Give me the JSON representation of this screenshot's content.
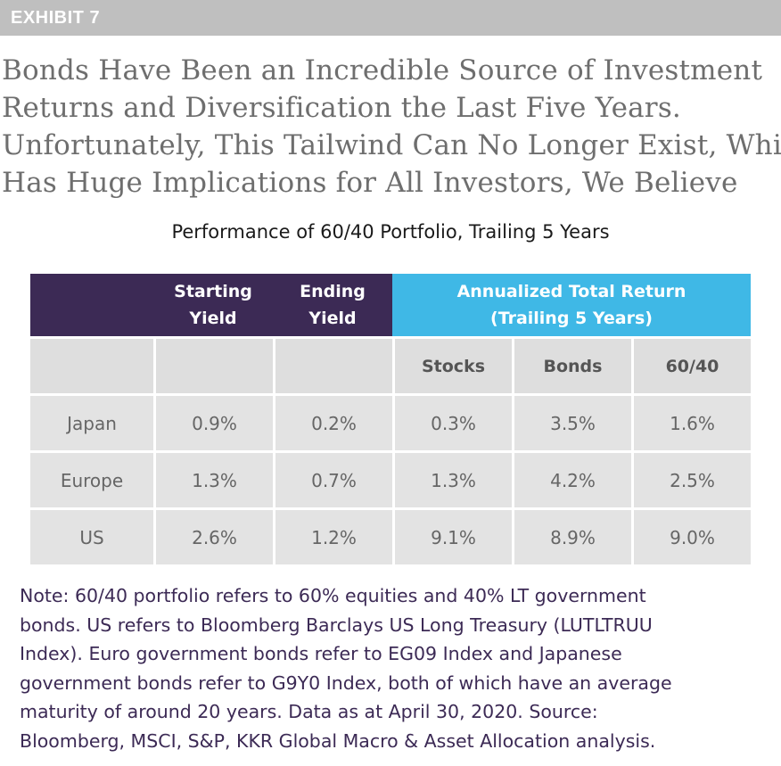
{
  "exhibit_label": "EXHIBIT 7",
  "headline_lines": [
    "Bonds Have Been an Incredible Source of Investment",
    "Returns and Diversification the Last Five Years.",
    "Unfortunately, This Tailwind Can No Longer Exist, Which",
    "Has Huge Implications for All Investors, We Believe"
  ],
  "subtitle": "Performance of 60/40 Portfolio, Trailing 5 Years",
  "table": {
    "header": {
      "starting_yield": [
        "Starting",
        "Yield"
      ],
      "ending_yield": [
        "Ending",
        "Yield"
      ],
      "annualized": [
        "Annualized Total Return",
        "(Trailing 5 Years)"
      ]
    },
    "subheader": [
      "",
      "",
      "",
      "Stocks",
      "Bonds",
      "60/40"
    ],
    "rows": [
      [
        "Japan",
        "0.9%",
        "0.2%",
        "0.3%",
        "3.5%",
        "1.6%"
      ],
      [
        "Europe",
        "1.3%",
        "0.7%",
        "1.3%",
        "4.2%",
        "2.5%"
      ],
      [
        "US",
        "2.6%",
        "1.2%",
        "9.1%",
        "8.9%",
        "9.0%"
      ]
    ]
  },
  "note_lines": [
    "Note: 60/40 portfolio refers to 60% equities and 40% LT government",
    "bonds. US refers to Bloomberg Barclays US Long Treasury (LUTLTRUU",
    "Index). Euro government bonds refer to EG09 Index and Japanese",
    "government bonds refer to G9Y0 Index, both of which have an average",
    "maturity of around 20 years. Data as at April 30, 2020. Source:",
    "Bloomberg, MSCI, S&P, KKR Global Macro & Asset Allocation analysis."
  ],
  "colors": {
    "header_purple": "#3c2a55",
    "header_blue": "#3fb8e6",
    "cell_gray": "#e3e3e3",
    "exhibit_gray": "#bfbfbf"
  }
}
